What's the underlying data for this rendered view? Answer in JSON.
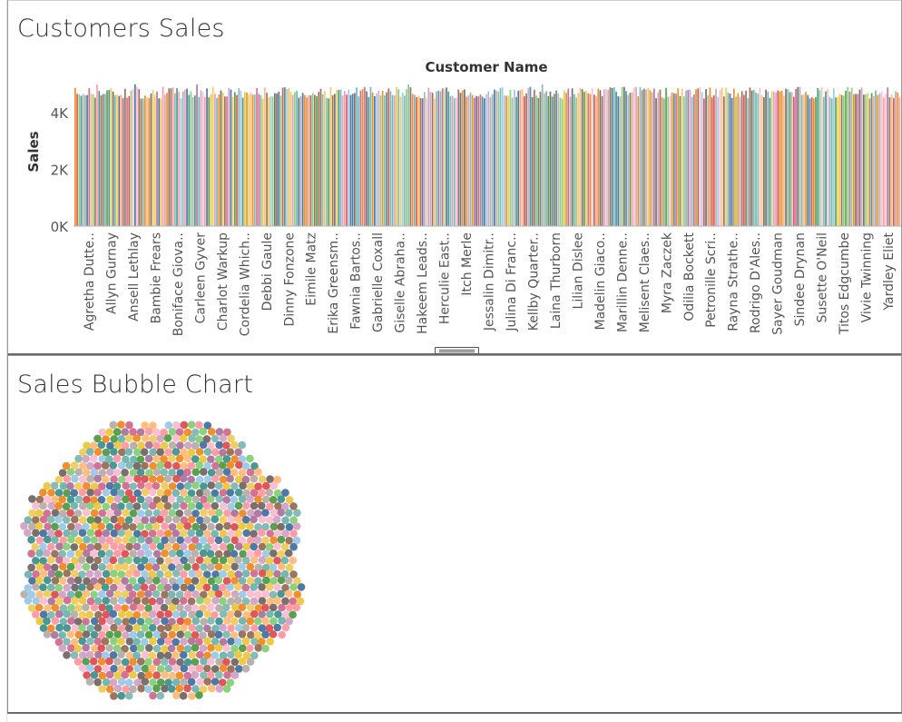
{
  "dashboard": {
    "top_title": "Customers Sales",
    "bottom_title": "Sales Bubble Chart"
  },
  "chart_data": [
    {
      "type": "bar",
      "title": "Customers Sales",
      "column_header": "Customer Name",
      "ylabel": "Sales",
      "ylim": [
        0,
        5000
      ],
      "yticks": [
        "0K",
        "2K",
        "4K"
      ],
      "ytick_values": [
        0,
        2000,
        4000
      ],
      "grid": false,
      "visible_bar_value_range": [
        4500,
        5000
      ],
      "visible_category_labels": [
        "Agretha Dutte..",
        "Allyn Gurnay",
        "Ansell Lethlay",
        "Bambie Frears",
        "Boniface Giova..",
        "Carleen Gyver",
        "Charlot Warkup",
        "Cordelia Which..",
        "Debbi Gaule",
        "Dinny Fonzone",
        "Eimile Matz",
        "Erika Greensm..",
        "Fawnia Bartos..",
        "Gabrielle Coxall",
        "Giselle Abraha..",
        "Hakeem Leads..",
        "Herculie East..",
        "Itch Merle",
        "Jessalin Dimitr..",
        "Julina Di Franc..",
        "Kellby Quarter..",
        "Laina Thurborn",
        "Lilian Dislee",
        "Madelin Giaco..",
        "Marillin Denne..",
        "Melisent Claes..",
        "Myra Zaczek",
        "Odilia Bockett",
        "Petronille Scri..",
        "Rayna Strathe..",
        "Rodrigo D'Ales..",
        "Sayer Goudman",
        "Sindee Drynan",
        "Susette O'Neil",
        "Titos Edgcumbe",
        "Vivie Twinning",
        "Yardley Eliet"
      ]
    },
    {
      "type": "scatter",
      "subtype": "packed-bubble",
      "title": "Sales Bubble Chart",
      "shape": "roughly circular cluster of equal-sized bubbles, one per customer",
      "palette": [
        "#4e79a7",
        "#f28e2b",
        "#e15759",
        "#76b7b2",
        "#59a14f",
        "#edc948",
        "#b07aa1",
        "#ff9da7",
        "#9c755f",
        "#bab0ac",
        "#a0cbe8",
        "#ffbe7d",
        "#8cd17d",
        "#f1ce63",
        "#86bcb6",
        "#fabfd2",
        "#d37295",
        "#d4a6c8",
        "#499894",
        "#79706e"
      ]
    }
  ]
}
